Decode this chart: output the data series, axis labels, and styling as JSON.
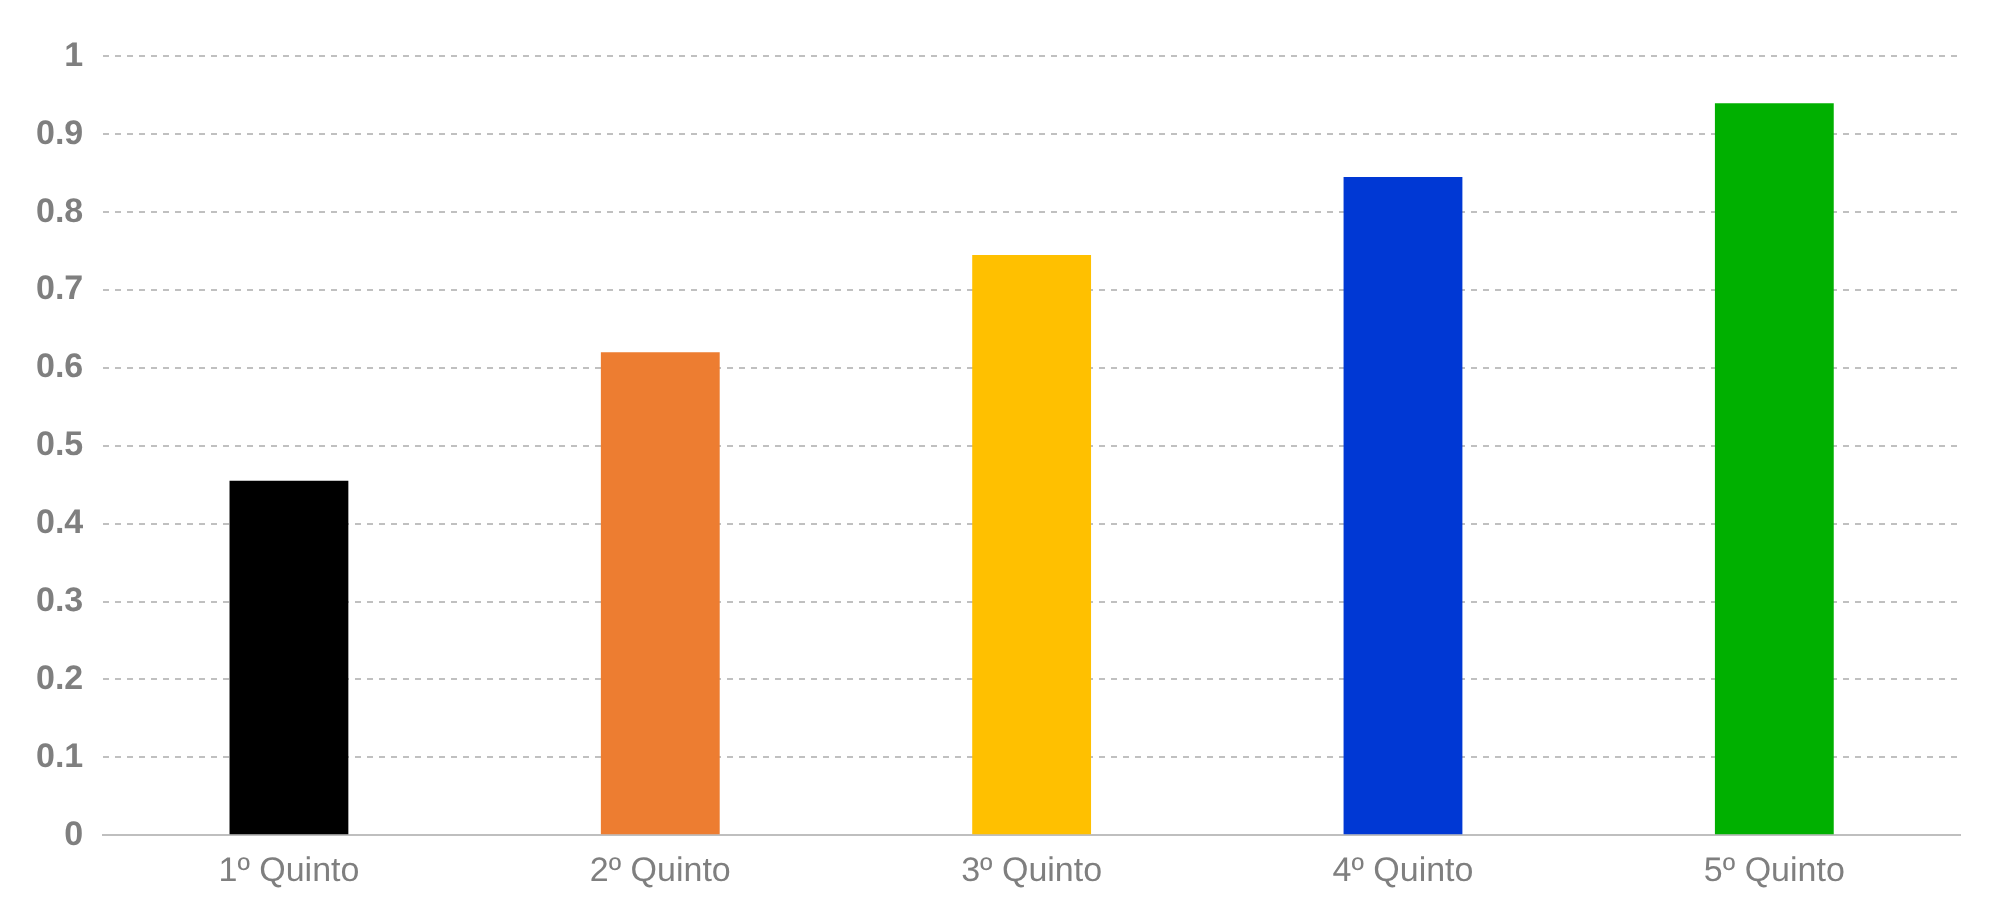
{
  "chart_data": {
    "type": "bar",
    "categories": [
      "1º Quinto",
      "2º Quinto",
      "3º Quinto",
      "4º Quinto",
      "5º Quinto"
    ],
    "values": [
      0.455,
      0.62,
      0.745,
      0.845,
      0.94
    ],
    "colors": [
      "#000000",
      "#ed7d31",
      "#ffc000",
      "#0038d4",
      "#00b000"
    ],
    "ylim": [
      0,
      1
    ],
    "yticks": [
      0,
      0.1,
      0.2,
      0.3,
      0.4,
      0.5,
      0.6,
      0.7,
      0.8,
      0.9,
      1
    ],
    "grid": "y",
    "legend": false
  }
}
